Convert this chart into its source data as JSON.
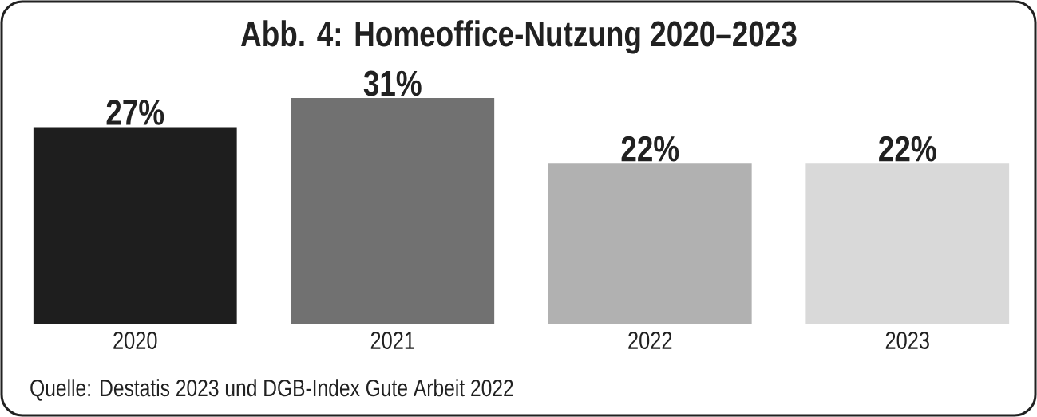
{
  "chart_data": {
    "type": "bar",
    "title": "Abb. 4: Homeoffice-Nutzung 2020–2023",
    "categories": [
      "2020",
      "2021",
      "2022",
      "2023"
    ],
    "values": [
      27,
      31,
      22,
      22
    ],
    "colors": [
      "#1e1e1e",
      "#717171",
      "#b1b1b1",
      "#d9d9d9"
    ],
    "value_labels": [
      "27%",
      "31%",
      "22%",
      "22%"
    ],
    "annotations": [
      "Quelle: Destatis 2023 und DGB-Index Gute Arbeit 2022"
    ]
  }
}
